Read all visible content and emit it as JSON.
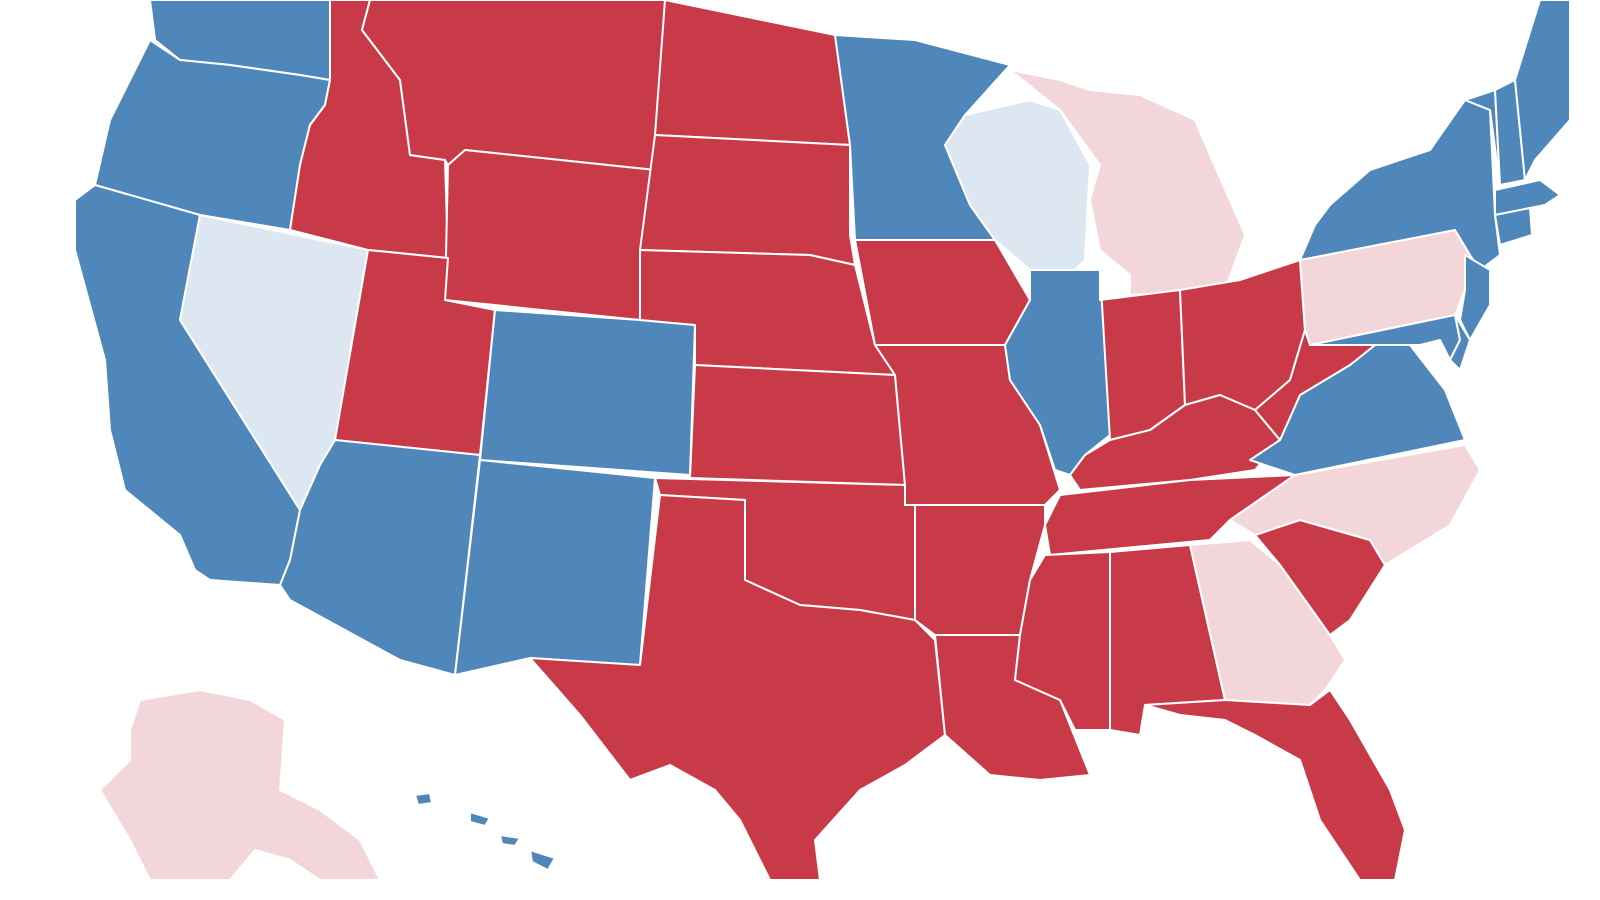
{
  "colors": {
    "background": "#ffffff",
    "safe_rep": "#c93a48",
    "safe_dem": "#4f87ba",
    "lean_rep": "#f2d6da",
    "lean_dem": "#dde7f2",
    "border": "#ffffff"
  },
  "states": [
    {
      "id": "WA",
      "rating": "safe_dem"
    },
    {
      "id": "OR",
      "rating": "safe_dem"
    },
    {
      "id": "CA",
      "rating": "safe_dem"
    },
    {
      "id": "NV",
      "rating": "lean_dem"
    },
    {
      "id": "ID",
      "rating": "safe_rep"
    },
    {
      "id": "MT",
      "rating": "safe_rep"
    },
    {
      "id": "WY",
      "rating": "safe_rep"
    },
    {
      "id": "UT",
      "rating": "safe_rep"
    },
    {
      "id": "AZ",
      "rating": "safe_dem"
    },
    {
      "id": "CO",
      "rating": "safe_dem"
    },
    {
      "id": "NM",
      "rating": "safe_dem"
    },
    {
      "id": "ND",
      "rating": "safe_rep"
    },
    {
      "id": "SD",
      "rating": "safe_rep"
    },
    {
      "id": "NE",
      "rating": "safe_rep"
    },
    {
      "id": "KS",
      "rating": "safe_rep"
    },
    {
      "id": "OK",
      "rating": "safe_rep"
    },
    {
      "id": "TX",
      "rating": "safe_rep"
    },
    {
      "id": "MN",
      "rating": "safe_dem"
    },
    {
      "id": "IA",
      "rating": "safe_rep"
    },
    {
      "id": "MO",
      "rating": "safe_rep"
    },
    {
      "id": "AR",
      "rating": "safe_rep"
    },
    {
      "id": "LA",
      "rating": "safe_rep"
    },
    {
      "id": "WI",
      "rating": "lean_dem"
    },
    {
      "id": "IL",
      "rating": "safe_dem"
    },
    {
      "id": "MI",
      "rating": "lean_rep"
    },
    {
      "id": "IN",
      "rating": "safe_rep"
    },
    {
      "id": "OH",
      "rating": "safe_rep"
    },
    {
      "id": "KY",
      "rating": "safe_rep"
    },
    {
      "id": "TN",
      "rating": "safe_rep"
    },
    {
      "id": "MS",
      "rating": "safe_rep"
    },
    {
      "id": "AL",
      "rating": "safe_rep"
    },
    {
      "id": "GA",
      "rating": "lean_rep"
    },
    {
      "id": "FL",
      "rating": "safe_rep"
    },
    {
      "id": "SC",
      "rating": "safe_rep"
    },
    {
      "id": "NC",
      "rating": "lean_rep"
    },
    {
      "id": "VA",
      "rating": "safe_dem"
    },
    {
      "id": "WV",
      "rating": "safe_rep"
    },
    {
      "id": "PA",
      "rating": "lean_rep"
    },
    {
      "id": "NY",
      "rating": "safe_dem"
    },
    {
      "id": "NJ",
      "rating": "safe_dem"
    },
    {
      "id": "MD",
      "rating": "safe_dem"
    },
    {
      "id": "DE",
      "rating": "safe_dem"
    },
    {
      "id": "VT",
      "rating": "safe_dem"
    },
    {
      "id": "NH",
      "rating": "safe_dem"
    },
    {
      "id": "MA",
      "rating": "safe_dem"
    },
    {
      "id": "CT",
      "rating": "safe_dem"
    },
    {
      "id": "ME",
      "rating": "safe_dem"
    },
    {
      "id": "AK",
      "rating": "lean_rep"
    },
    {
      "id": "HI",
      "rating": "safe_dem"
    }
  ]
}
